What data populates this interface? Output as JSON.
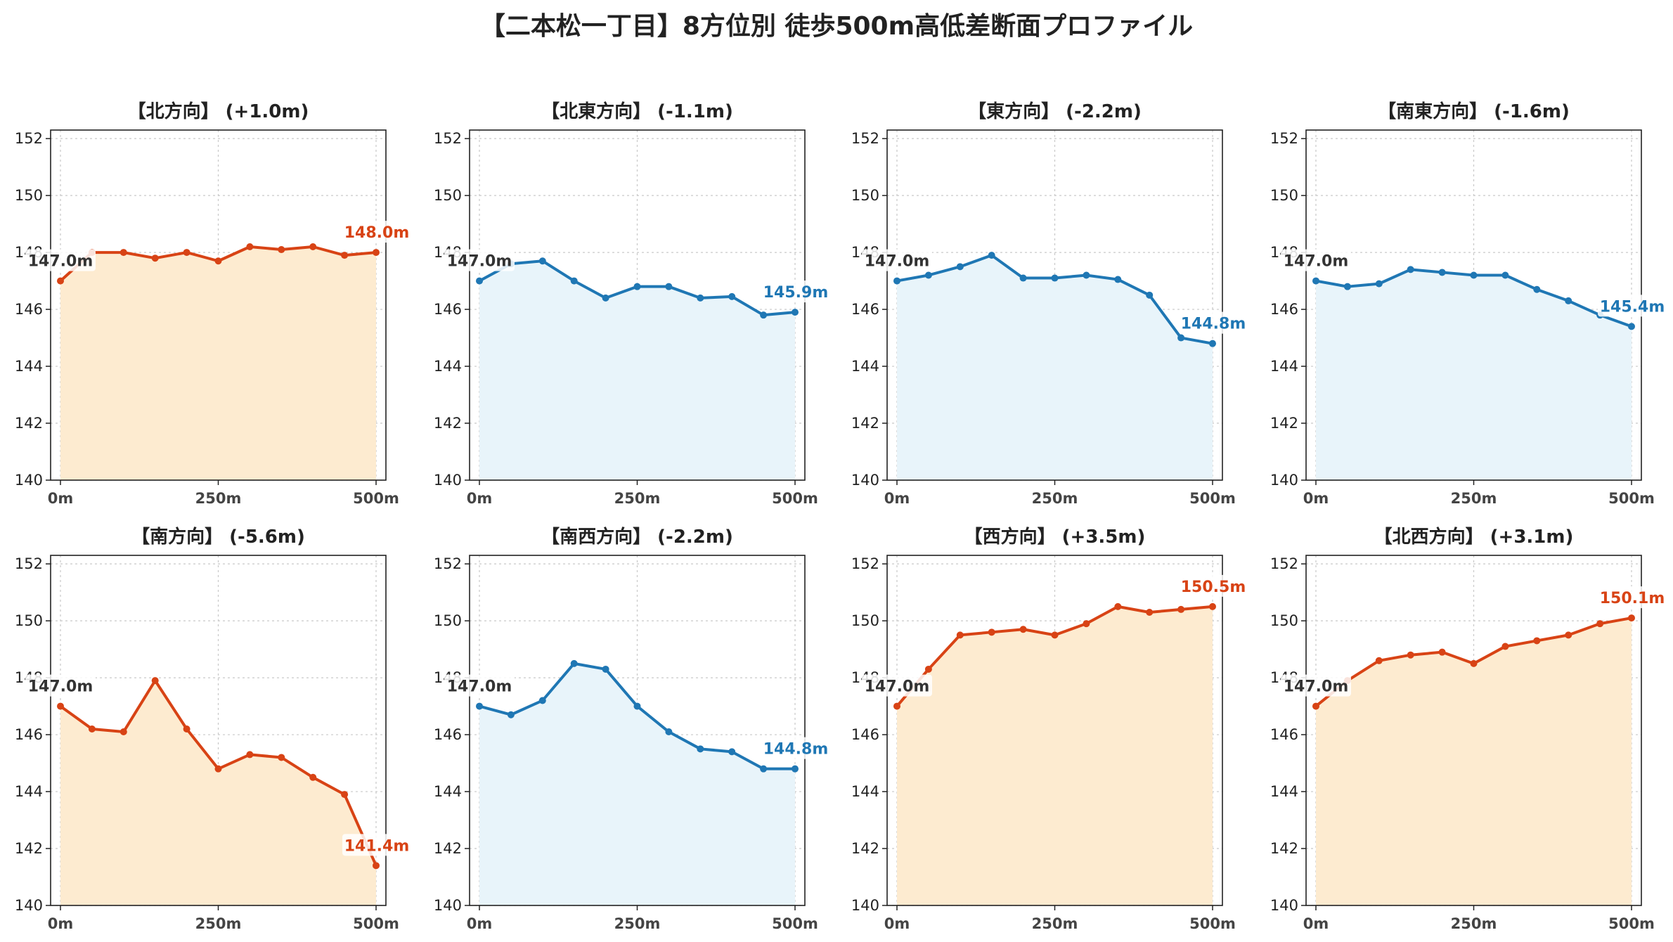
{
  "title": "【二本松一丁目】8方位別 徒歩500m高低差断面プロファイル",
  "colors": {
    "down_line": "#1f77b4",
    "down_fill": "#e8f4fa",
    "up_line": "#d84315",
    "up_fill": "#fdebd0",
    "start_label": "#333333"
  },
  "chart_data": [
    {
      "type": "line",
      "title": "【北方向】 (+1.0m)",
      "trend": "up_small",
      "x": [
        0,
        50,
        100,
        150,
        200,
        250,
        300,
        350,
        400,
        450,
        500
      ],
      "values": [
        147.0,
        148.0,
        148.0,
        147.8,
        148.0,
        147.7,
        148.2,
        148.1,
        148.2,
        147.9,
        148.0
      ],
      "start_label": "147.0m",
      "end_label": "148.0m",
      "xticks": [
        "0m",
        "250m",
        "500m"
      ],
      "yticks": [
        140,
        142,
        144,
        146,
        148,
        150,
        152
      ],
      "ylim": [
        140,
        152.3
      ],
      "grid": true
    },
    {
      "type": "line",
      "title": "【北東方向】 (-1.1m)",
      "trend": "down",
      "x": [
        0,
        50,
        100,
        150,
        200,
        250,
        300,
        350,
        400,
        450,
        500
      ],
      "values": [
        147.0,
        147.6,
        147.7,
        147.0,
        146.4,
        146.8,
        146.8,
        146.4,
        146.45,
        145.8,
        145.9
      ],
      "start_label": "147.0m",
      "end_label": "145.9m",
      "xticks": [
        "0m",
        "250m",
        "500m"
      ],
      "yticks": [
        140,
        142,
        144,
        146,
        148,
        150,
        152
      ],
      "ylim": [
        140,
        152.3
      ],
      "grid": true
    },
    {
      "type": "line",
      "title": "【東方向】 (-2.2m)",
      "trend": "down",
      "x": [
        0,
        50,
        100,
        150,
        200,
        250,
        300,
        350,
        400,
        450,
        500
      ],
      "values": [
        147.0,
        147.2,
        147.5,
        147.9,
        147.1,
        147.1,
        147.2,
        147.05,
        146.5,
        145.0,
        144.8
      ],
      "start_label": "147.0m",
      "end_label": "144.8m",
      "xticks": [
        "0m",
        "250m",
        "500m"
      ],
      "yticks": [
        140,
        142,
        144,
        146,
        148,
        150,
        152
      ],
      "ylim": [
        140,
        152.3
      ],
      "grid": true
    },
    {
      "type": "line",
      "title": "【南東方向】 (-1.6m)",
      "trend": "down",
      "x": [
        0,
        50,
        100,
        150,
        200,
        250,
        300,
        350,
        400,
        450,
        500
      ],
      "values": [
        147.0,
        146.8,
        146.9,
        147.4,
        147.3,
        147.2,
        147.2,
        146.7,
        146.3,
        145.8,
        145.4
      ],
      "start_label": "147.0m",
      "end_label": "145.4m",
      "xticks": [
        "0m",
        "250m",
        "500m"
      ],
      "yticks": [
        140,
        142,
        144,
        146,
        148,
        150,
        152
      ],
      "ylim": [
        140,
        152.3
      ],
      "grid": true
    },
    {
      "type": "line",
      "title": "【南方向】 (-5.6m)",
      "trend": "down_large",
      "x": [
        0,
        50,
        100,
        150,
        200,
        250,
        300,
        350,
        400,
        450,
        500
      ],
      "values": [
        147.0,
        146.2,
        146.1,
        147.9,
        146.2,
        144.8,
        145.3,
        145.2,
        144.5,
        143.9,
        141.4
      ],
      "start_label": "147.0m",
      "end_label": "141.4m",
      "xticks": [
        "0m",
        "250m",
        "500m"
      ],
      "yticks": [
        140,
        142,
        144,
        146,
        148,
        150,
        152
      ],
      "ylim": [
        140,
        152.3
      ],
      "grid": true
    },
    {
      "type": "line",
      "title": "【南西方向】 (-2.2m)",
      "trend": "down",
      "x": [
        0,
        50,
        100,
        150,
        200,
        250,
        300,
        350,
        400,
        450,
        500
      ],
      "values": [
        147.0,
        146.7,
        147.2,
        148.5,
        148.3,
        147.0,
        146.1,
        145.5,
        145.4,
        144.8,
        144.8
      ],
      "start_label": "147.0m",
      "end_label": "144.8m",
      "xticks": [
        "0m",
        "250m",
        "500m"
      ],
      "yticks": [
        140,
        142,
        144,
        146,
        148,
        150,
        152
      ],
      "ylim": [
        140,
        152.3
      ],
      "grid": true
    },
    {
      "type": "line",
      "title": "【西方向】 (+3.5m)",
      "trend": "up",
      "x": [
        0,
        50,
        100,
        150,
        200,
        250,
        300,
        350,
        400,
        450,
        500
      ],
      "values": [
        147.0,
        148.3,
        149.5,
        149.6,
        149.7,
        149.5,
        149.9,
        150.5,
        150.3,
        150.4,
        150.5
      ],
      "start_label": "147.0m",
      "end_label": "150.5m",
      "xticks": [
        "0m",
        "250m",
        "500m"
      ],
      "yticks": [
        140,
        142,
        144,
        146,
        148,
        150,
        152
      ],
      "ylim": [
        140,
        152.3
      ],
      "grid": true
    },
    {
      "type": "line",
      "title": "【北西方向】 (+3.1m)",
      "trend": "up",
      "x": [
        0,
        50,
        100,
        150,
        200,
        250,
        300,
        350,
        400,
        450,
        500
      ],
      "values": [
        147.0,
        147.9,
        148.6,
        148.8,
        148.9,
        148.5,
        149.1,
        149.3,
        149.5,
        149.9,
        150.1
      ],
      "start_label": "147.0m",
      "end_label": "150.1m",
      "xticks": [
        "0m",
        "250m",
        "500m"
      ],
      "yticks": [
        140,
        142,
        144,
        146,
        148,
        150,
        152
      ],
      "ylim": [
        140,
        152.3
      ],
      "grid": true
    }
  ]
}
